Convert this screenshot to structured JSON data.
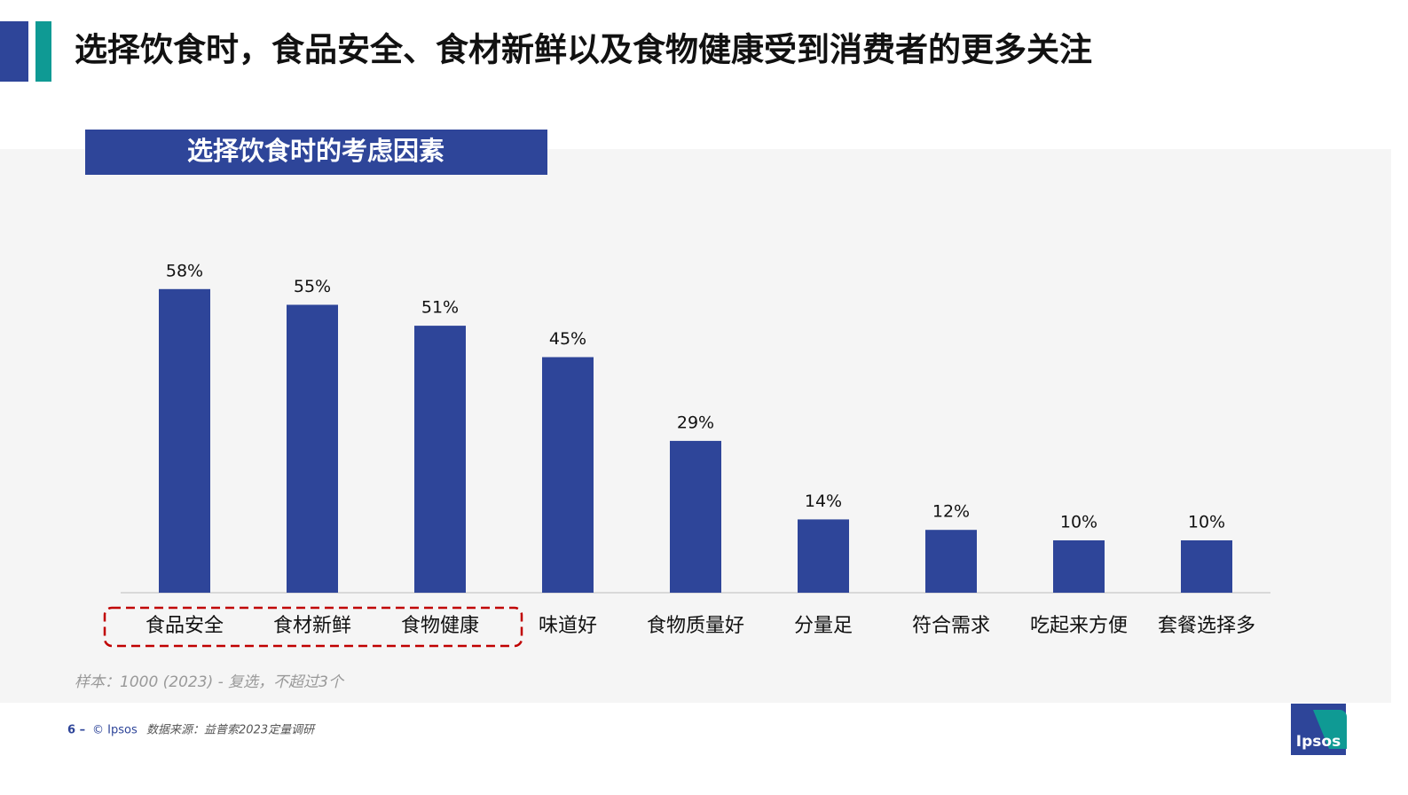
{
  "slide": {
    "title": "选择饮食时，食品安全、食材新鲜以及食物健康受到消费者的更多关注",
    "note": "样本：1000 (2023) - 复选，不超过3个",
    "page": "6 –",
    "copyright": "© Ipsos",
    "source": "数据来源：益普索2023定量调研",
    "logo": "Ipsos"
  },
  "chart_data": {
    "type": "bar",
    "title": "选择饮食时的考虑因素",
    "categories": [
      "食品安全",
      "食材新鲜",
      "食物健康",
      "味道好",
      "食物质量好",
      "分量足",
      "符合需求",
      "吃起来方便",
      "套餐选择多"
    ],
    "values": [
      58,
      55,
      51,
      45,
      29,
      14,
      12,
      10,
      10
    ],
    "value_labels": [
      "58%",
      "55%",
      "51%",
      "45%",
      "29%",
      "14%",
      "12%",
      "10%",
      "10%"
    ],
    "color": "#2e4599"
  }
}
